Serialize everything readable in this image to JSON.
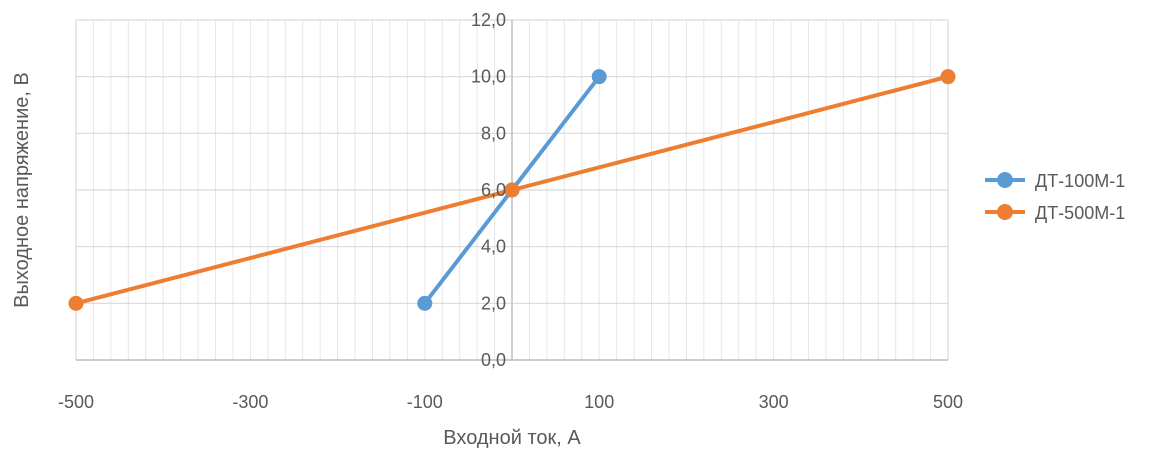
{
  "chart_data": {
    "type": "line",
    "title": "",
    "xlabel": "Входной ток, А",
    "ylabel": "Выходное напряжение, В",
    "xlim": [
      -500,
      500
    ],
    "ylim": [
      0,
      12
    ],
    "x_ticks": [
      -500,
      -300,
      -100,
      100,
      300,
      500
    ],
    "x_tick_labels": [
      "-500",
      "-300",
      "-100",
      "100",
      "300",
      "500"
    ],
    "x_minor_step": 20,
    "y_ticks": [
      0,
      2,
      4,
      6,
      8,
      10,
      12
    ],
    "y_tick_labels": [
      "0,0",
      "2,0",
      "4,0",
      "6,0",
      "8,0",
      "10,0",
      "12,0"
    ],
    "grid": true,
    "legend_position": "right",
    "series": [
      {
        "name": "ДТ-100М-1",
        "color": "#5B9BD5",
        "marker": "circle",
        "points": [
          [
            -100,
            2
          ],
          [
            0,
            6
          ],
          [
            100,
            10
          ]
        ]
      },
      {
        "name": "ДТ-500М-1",
        "color": "#ED7D31",
        "marker": "circle",
        "points": [
          [
            -500,
            2
          ],
          [
            0,
            6
          ],
          [
            500,
            10
          ]
        ]
      }
    ]
  }
}
